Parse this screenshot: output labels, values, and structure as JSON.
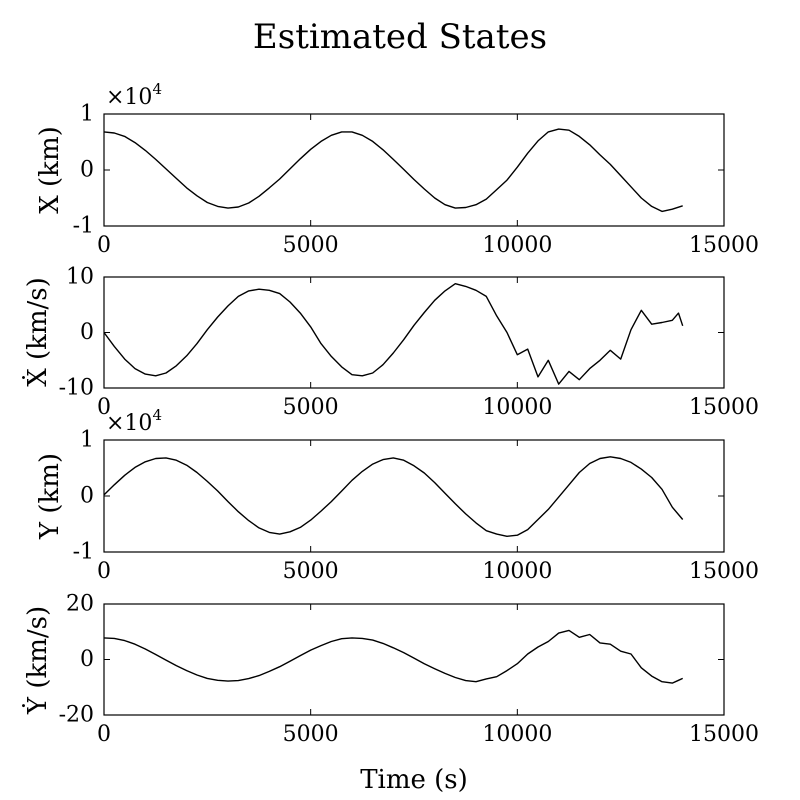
{
  "figure": {
    "title": "Estimated States",
    "xlabel": "Time (s)"
  },
  "chart_data": [
    {
      "type": "line",
      "ylabel": "X (km)",
      "exponent_base": "×10",
      "exponent_power": "4",
      "xlim": [
        0,
        15000
      ],
      "ylim": [
        -1,
        1
      ],
      "xticks": [
        0,
        5000,
        10000,
        15000
      ],
      "yticks": [
        -1,
        0,
        1
      ],
      "xtick_labels": [
        "0",
        "5000",
        "10000",
        "15000"
      ],
      "ytick_labels": [
        "-1",
        "0",
        "1"
      ],
      "series": [
        {
          "x": [
            0,
            250,
            500,
            750,
            1000,
            1250,
            1500,
            1750,
            2000,
            2250,
            2500,
            2750,
            3000,
            3250,
            3500,
            3750,
            4000,
            4250,
            4500,
            4750,
            5000,
            5250,
            5500,
            5750,
            6000,
            6250,
            6500,
            6750,
            7000,
            7250,
            7500,
            7750,
            8000,
            8250,
            8500,
            8750,
            9000,
            9250,
            9500,
            9750,
            10000,
            10250,
            10500,
            10750,
            11000,
            11250,
            11500,
            11750,
            12000,
            12250,
            12500,
            12750,
            13000,
            13250,
            13500,
            13750,
            14000
          ],
          "values": [
            0.68,
            0.66,
            0.6,
            0.49,
            0.35,
            0.19,
            0.02,
            -0.15,
            -0.32,
            -0.46,
            -0.58,
            -0.65,
            -0.68,
            -0.66,
            -0.59,
            -0.47,
            -0.32,
            -0.16,
            0.02,
            0.2,
            0.37,
            0.51,
            0.62,
            0.68,
            0.68,
            0.62,
            0.51,
            0.36,
            0.19,
            0.01,
            -0.17,
            -0.34,
            -0.5,
            -0.62,
            -0.68,
            -0.67,
            -0.62,
            -0.52,
            -0.35,
            -0.18,
            0.05,
            0.3,
            0.52,
            0.68,
            0.73,
            0.71,
            0.6,
            0.45,
            0.27,
            0.1,
            -0.1,
            -0.3,
            -0.5,
            -0.65,
            -0.74,
            -0.7,
            -0.64
          ]
        }
      ]
    },
    {
      "type": "line",
      "ylabel": "Ẋ (km/s)",
      "xlim": [
        0,
        15000
      ],
      "ylim": [
        -10,
        10
      ],
      "xticks": [
        0,
        5000,
        10000,
        15000
      ],
      "yticks": [
        -10,
        0,
        10
      ],
      "xtick_labels": [
        "0",
        "5000",
        "10000",
        "15000"
      ],
      "ytick_labels": [
        "-10",
        "0",
        "10"
      ],
      "series": [
        {
          "x": [
            0,
            250,
            500,
            750,
            1000,
            1250,
            1500,
            1750,
            2000,
            2250,
            2500,
            2750,
            3000,
            3250,
            3500,
            3750,
            4000,
            4250,
            4500,
            4750,
            5000,
            5250,
            5500,
            5750,
            6000,
            6250,
            6500,
            6750,
            7000,
            7250,
            7500,
            7750,
            8000,
            8250,
            8500,
            8750,
            9000,
            9250,
            9500,
            9750,
            10000,
            10250,
            10500,
            10750,
            11000,
            11250,
            11500,
            11750,
            12000,
            12250,
            12500,
            12750,
            13000,
            13250,
            13500,
            13750,
            13900,
            14000
          ],
          "values": [
            0,
            -2.5,
            -4.8,
            -6.5,
            -7.5,
            -7.8,
            -7.3,
            -6,
            -4.2,
            -2,
            0.5,
            2.8,
            4.8,
            6.5,
            7.5,
            7.8,
            7.6,
            7,
            5.5,
            3.5,
            1,
            -2,
            -4.3,
            -6.2,
            -7.6,
            -7.8,
            -7.3,
            -5.8,
            -3.7,
            -1.3,
            1.3,
            3.6,
            5.8,
            7.5,
            8.8,
            8.3,
            7.6,
            6.5,
            3,
            0,
            -4,
            -3,
            -8,
            -5,
            -9.3,
            -7,
            -8.5,
            -6.5,
            -5,
            -3.2,
            -4.8,
            0.5,
            4,
            1.5,
            1.8,
            2.2,
            3.5,
            1.2
          ]
        }
      ]
    },
    {
      "type": "line",
      "ylabel": "Y (km)",
      "exponent_base": "×10",
      "exponent_power": "4",
      "xlim": [
        0,
        15000
      ],
      "ylim": [
        -1,
        1
      ],
      "xticks": [
        0,
        5000,
        10000,
        15000
      ],
      "yticks": [
        -1,
        0,
        1
      ],
      "xtick_labels": [
        "0",
        "5000",
        "10000",
        "15000"
      ],
      "ytick_labels": [
        "-1",
        "0",
        "1"
      ],
      "series": [
        {
          "x": [
            0,
            250,
            500,
            750,
            1000,
            1250,
            1500,
            1750,
            2000,
            2250,
            2500,
            2750,
            3000,
            3250,
            3500,
            3750,
            4000,
            4250,
            4500,
            4750,
            5000,
            5250,
            5500,
            5750,
            6000,
            6250,
            6500,
            6750,
            7000,
            7250,
            7500,
            7750,
            8000,
            8250,
            8500,
            8750,
            9000,
            9250,
            9500,
            9750,
            10000,
            10250,
            10500,
            10750,
            11000,
            11250,
            11500,
            11750,
            12000,
            12250,
            12500,
            12750,
            13000,
            13250,
            13500,
            13750,
            14000
          ],
          "values": [
            0.02,
            0.2,
            0.37,
            0.51,
            0.61,
            0.67,
            0.68,
            0.64,
            0.55,
            0.42,
            0.26,
            0.09,
            -0.1,
            -0.28,
            -0.44,
            -0.57,
            -0.65,
            -0.68,
            -0.64,
            -0.56,
            -0.43,
            -0.27,
            -0.1,
            0.09,
            0.28,
            0.44,
            0.57,
            0.65,
            0.68,
            0.64,
            0.54,
            0.41,
            0.24,
            0.05,
            -0.14,
            -0.32,
            -0.48,
            -0.62,
            -0.68,
            -0.72,
            -0.7,
            -0.6,
            -0.42,
            -0.24,
            -0.02,
            0.2,
            0.42,
            0.58,
            0.67,
            0.7,
            0.67,
            0.6,
            0.48,
            0.33,
            0.12,
            -0.2,
            -0.42
          ]
        }
      ]
    },
    {
      "type": "line",
      "ylabel": "Ẏ (km/s)",
      "xlim": [
        0,
        15000
      ],
      "ylim": [
        -20,
        20
      ],
      "xticks": [
        0,
        5000,
        10000,
        15000
      ],
      "yticks": [
        -20,
        0,
        20
      ],
      "xtick_labels": [
        "0",
        "5000",
        "10000",
        "15000"
      ],
      "ytick_labels": [
        "-20",
        "0",
        "20"
      ],
      "series": [
        {
          "x": [
            0,
            250,
            500,
            750,
            1000,
            1250,
            1500,
            1750,
            2000,
            2250,
            2500,
            2750,
            3000,
            3250,
            3500,
            3750,
            4000,
            4250,
            4500,
            4750,
            5000,
            5250,
            5500,
            5750,
            6000,
            6250,
            6500,
            6750,
            7000,
            7250,
            7500,
            7750,
            8000,
            8250,
            8500,
            8750,
            9000,
            9250,
            9500,
            9750,
            10000,
            10250,
            10500,
            10750,
            11000,
            11250,
            11500,
            11750,
            12000,
            12250,
            12500,
            12750,
            13000,
            13250,
            13500,
            13750,
            13900,
            14000
          ],
          "values": [
            7.8,
            7.6,
            6.8,
            5.5,
            3.8,
            1.8,
            -0.2,
            -2.2,
            -4,
            -5.6,
            -6.8,
            -7.5,
            -7.8,
            -7.6,
            -6.9,
            -5.8,
            -4.3,
            -2.6,
            -0.6,
            1.4,
            3.4,
            5,
            6.5,
            7.5,
            7.8,
            7.6,
            7,
            5.8,
            4.2,
            2.5,
            0.5,
            -1.5,
            -3.3,
            -5,
            -6.5,
            -7.6,
            -8,
            -7,
            -6.2,
            -4,
            -1.5,
            2,
            4.5,
            6.5,
            9.5,
            10.5,
            8,
            9,
            6,
            5.5,
            3,
            2,
            -3,
            -6,
            -8,
            -8.5,
            -7.5,
            -6.8
          ]
        }
      ]
    }
  ]
}
